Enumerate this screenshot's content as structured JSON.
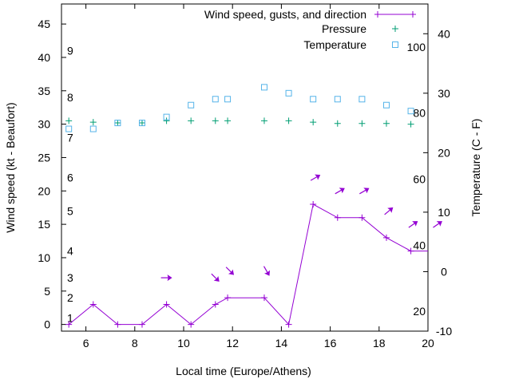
{
  "chart_data": {
    "type": "line",
    "xlabel": "Local time (Europe/Athens)",
    "ylabel_left": "Wind speed (kt - Beaufort)",
    "ylabel_right": "Temperature (C - F)",
    "xlim": [
      5,
      20
    ],
    "ylim_left": [
      -1,
      48
    ],
    "ylim_right": [
      -10,
      45
    ],
    "x_ticks": [
      6,
      8,
      10,
      12,
      14,
      16,
      18,
      20
    ],
    "y_left_ticks": [
      0,
      5,
      10,
      15,
      20,
      25,
      30,
      35,
      40,
      45
    ],
    "y_right_ticks": [
      -10,
      0,
      10,
      20,
      30,
      40
    ],
    "beaufort_labels": [
      {
        "label": "1",
        "kt": 1
      },
      {
        "label": "2",
        "kt": 4
      },
      {
        "label": "3",
        "kt": 7
      },
      {
        "label": "4",
        "kt": 11
      },
      {
        "label": "5",
        "kt": 17
      },
      {
        "label": "6",
        "kt": 22
      },
      {
        "label": "7",
        "kt": 28
      },
      {
        "label": "8",
        "kt": 34
      },
      {
        "label": "9",
        "kt": 41
      }
    ],
    "fahrenheit_labels": [
      {
        "label": "20",
        "f": 20
      },
      {
        "label": "40",
        "f": 40
      },
      {
        "label": "60",
        "f": 60
      },
      {
        "label": "80",
        "f": 80
      },
      {
        "label": "100",
        "f": 100
      }
    ],
    "grid": false,
    "legend_placement": "top-right",
    "colors": {
      "wind": "#9400d3",
      "pressure": "#009e73",
      "temperature": "#56b4e9"
    },
    "series": [
      {
        "name": "Wind speed, gusts, and direction",
        "style": "line-points",
        "axis": "left",
        "x": [
          5.3,
          6.3,
          7.3,
          8.3,
          9.3,
          10.3,
          11.3,
          11.8,
          13.3,
          14.3,
          15.3,
          16.3,
          17.3,
          18.3,
          19.3,
          20
        ],
        "values": [
          0,
          3,
          0,
          0,
          3,
          0,
          3,
          4,
          4,
          0,
          18,
          16,
          16,
          13,
          11,
          11
        ]
      },
      {
        "name": "Pressure",
        "style": "points-plus",
        "axis": "left",
        "x": [
          5.3,
          6.3,
          7.3,
          8.3,
          9.3,
          10.3,
          11.3,
          11.8,
          13.3,
          14.3,
          15.3,
          16.3,
          17.3,
          18.3,
          19.3
        ],
        "values": [
          30.5,
          30.3,
          30.2,
          30.2,
          30.5,
          30.5,
          30.5,
          30.5,
          30.5,
          30.5,
          30.3,
          30.1,
          30.1,
          30.1,
          30.0
        ]
      },
      {
        "name": "Temperature",
        "style": "points-square",
        "axis": "right",
        "x": [
          5.3,
          6.3,
          7.3,
          8.3,
          9.3,
          10.3,
          11.3,
          11.8,
          13.3,
          14.3,
          15.3,
          16.3,
          17.3,
          18.3,
          19.3
        ],
        "values": [
          24,
          24,
          25,
          25,
          26,
          28,
          29,
          29,
          31,
          30,
          29,
          29,
          29,
          28,
          27
        ]
      }
    ],
    "wind_arrows": [
      {
        "x": 9.3,
        "y": 7,
        "dir": 0
      },
      {
        "x": 11.3,
        "y": 7,
        "dir": 45
      },
      {
        "x": 11.9,
        "y": 8,
        "dir": 45
      },
      {
        "x": 13.4,
        "y": 8,
        "dir": 60
      },
      {
        "x": 15.4,
        "y": 22,
        "dir": -30
      },
      {
        "x": 16.4,
        "y": 20,
        "dir": -30
      },
      {
        "x": 17.4,
        "y": 20,
        "dir": -30
      },
      {
        "x": 18.4,
        "y": 17,
        "dir": -40
      },
      {
        "x": 19.4,
        "y": 15,
        "dir": -35
      },
      {
        "x": 20.4,
        "y": 15,
        "dir": -35
      }
    ]
  }
}
